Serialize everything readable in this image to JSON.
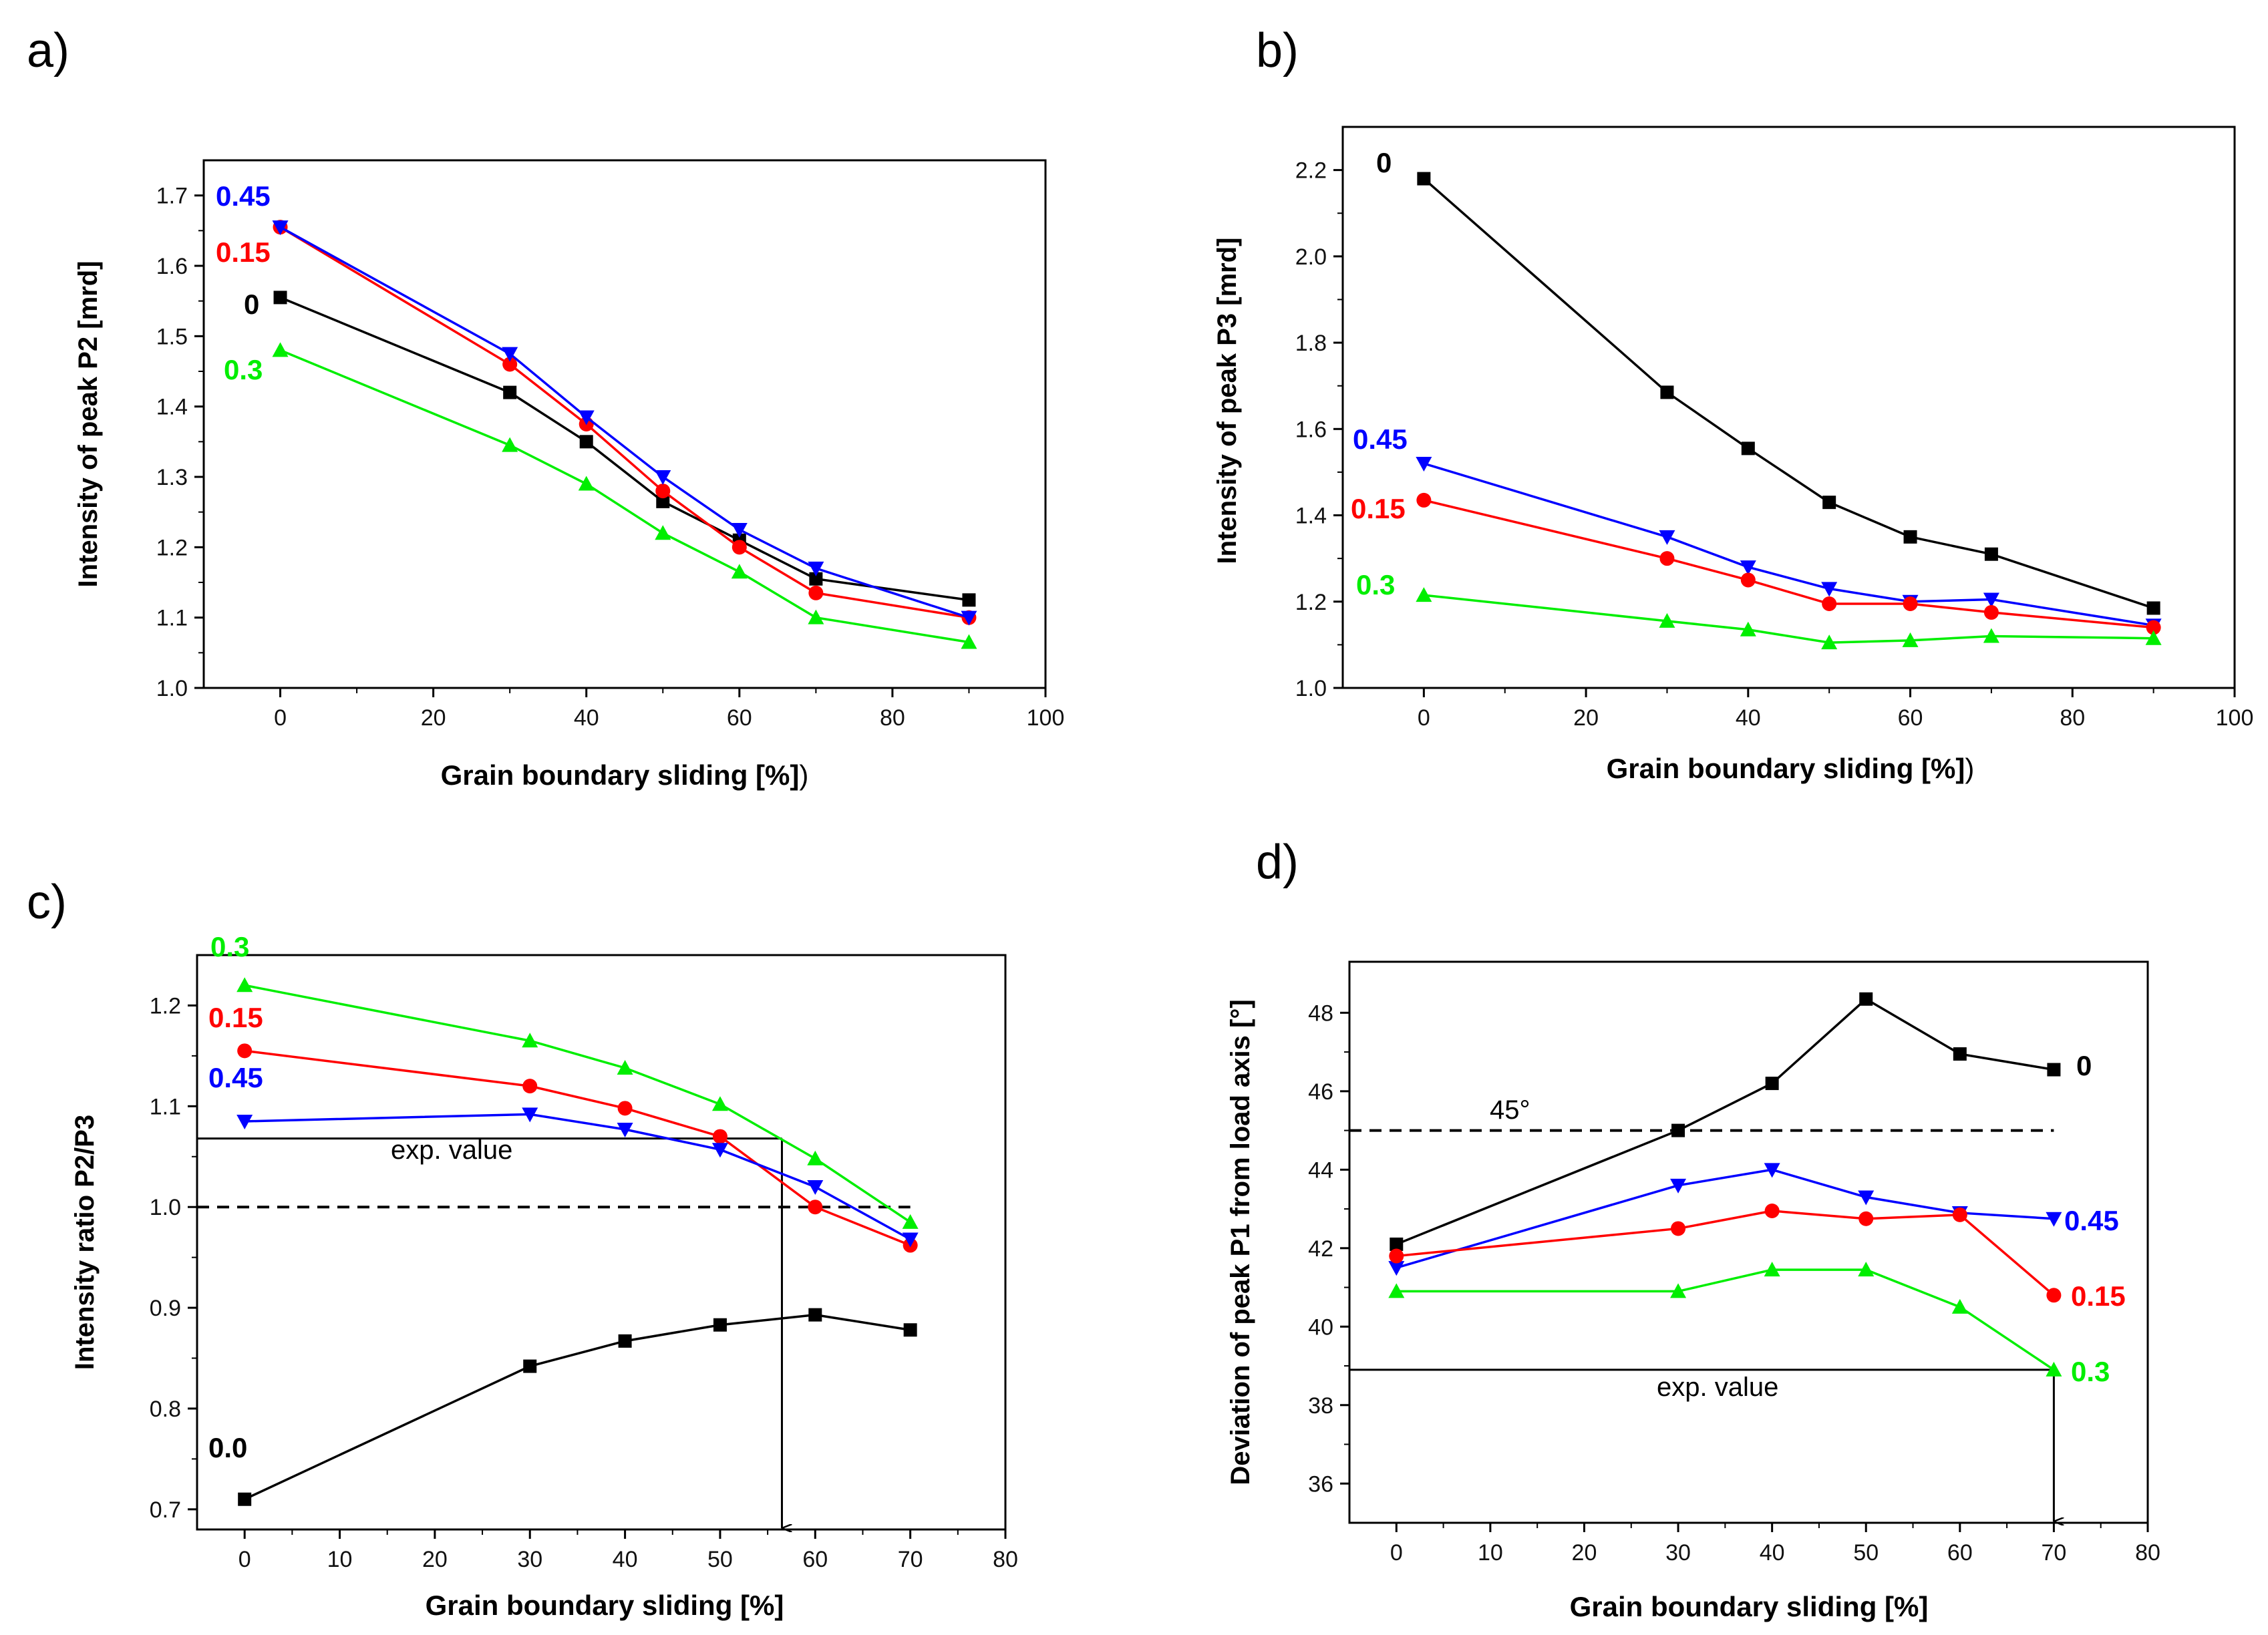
{
  "colors": {
    "black": "#000000",
    "red": "#ff0000",
    "blue": "#0000ff",
    "green": "#00ee00"
  },
  "chart_data": [
    {
      "panel": "a)",
      "type": "line",
      "xlabel": "Grain boundary sliding [%]",
      "xlabel_suffix": ")",
      "ylabel": "Intensity of peak P2 [mrd]",
      "xlim": [
        -10,
        100
      ],
      "ylim": [
        1.0,
        1.75
      ],
      "xticks": [
        0,
        20,
        40,
        60,
        80,
        100
      ],
      "xtick_labels": [
        "0",
        "20",
        "40",
        "60",
        "80",
        "100"
      ],
      "yticks": [
        1.0,
        1.1,
        1.2,
        1.3,
        1.4,
        1.5,
        1.6,
        1.7
      ],
      "ytick_labels": [
        "1.0",
        "1.1",
        "1.2",
        "1.3",
        "1.4",
        "1.5",
        "1.6",
        "1.7"
      ],
      "x": [
        0,
        30,
        40,
        50,
        60,
        70,
        90
      ],
      "series": [
        {
          "name": "0",
          "label": "0",
          "color": "black",
          "marker": "square",
          "values": [
            1.555,
            1.42,
            1.35,
            1.265,
            1.21,
            1.155,
            1.125
          ]
        },
        {
          "name": "0.15",
          "label": "0.15",
          "color": "red",
          "marker": "circle",
          "values": [
            1.655,
            1.46,
            1.375,
            1.28,
            1.2,
            1.135,
            1.1
          ]
        },
        {
          "name": "0.45",
          "label": "0.45",
          "color": "blue",
          "marker": "triangle-down",
          "values": [
            1.655,
            1.475,
            1.385,
            1.3,
            1.225,
            1.17,
            1.1
          ]
        },
        {
          "name": "0.3",
          "label": "0.3",
          "color": "green",
          "marker": "triangle-up",
          "values": [
            1.48,
            1.345,
            1.29,
            1.22,
            1.165,
            1.1,
            1.065
          ]
        }
      ]
    },
    {
      "panel": "b)",
      "type": "line",
      "xlabel": "Grain boundary sliding [%]",
      "xlabel_suffix": ")",
      "ylabel": "Intensity of peak P3 [mrd]",
      "xlim": [
        -10,
        100
      ],
      "ylim": [
        1.0,
        2.3
      ],
      "xticks": [
        0,
        20,
        40,
        60,
        80,
        100
      ],
      "xtick_labels": [
        "0",
        "20",
        "40",
        "60",
        "80",
        "100"
      ],
      "yticks": [
        1.0,
        1.2,
        1.4,
        1.6,
        1.8,
        2.0,
        2.2
      ],
      "ytick_labels": [
        "1.0",
        "1.2",
        "1.4",
        "1.6",
        "1.8",
        "2.0",
        "2.2"
      ],
      "x": [
        0,
        30,
        40,
        50,
        60,
        70,
        90
      ],
      "series": [
        {
          "name": "0",
          "label": "0",
          "color": "black",
          "marker": "square",
          "values": [
            2.18,
            1.685,
            1.555,
            1.43,
            1.35,
            1.31,
            1.185
          ]
        },
        {
          "name": "0.45",
          "label": "0.45",
          "color": "blue",
          "marker": "triangle-down",
          "values": [
            1.52,
            1.35,
            1.28,
            1.23,
            1.2,
            1.205,
            1.145
          ]
        },
        {
          "name": "0.15",
          "label": "0.15",
          "color": "red",
          "marker": "circle",
          "values": [
            1.435,
            1.3,
            1.25,
            1.195,
            1.195,
            1.175,
            1.14
          ]
        },
        {
          "name": "0.3",
          "label": "0.3",
          "color": "green",
          "marker": "triangle-up",
          "values": [
            1.215,
            1.155,
            1.135,
            1.105,
            1.11,
            1.12,
            1.115
          ]
        }
      ]
    },
    {
      "panel": "c)",
      "type": "line",
      "xlabel": "Grain boundary sliding [%]",
      "ylabel": "Intensity ratio P2/P3",
      "xlim": [
        -5,
        80
      ],
      "ylim": [
        0.68,
        1.25
      ],
      "xticks": [
        0,
        10,
        20,
        30,
        40,
        50,
        60,
        70,
        80
      ],
      "xtick_labels": [
        "0",
        "10",
        "20",
        "30",
        "40",
        "50",
        "60",
        "70",
        "80"
      ],
      "yticks": [
        0.7,
        0.8,
        0.9,
        1.0,
        1.1,
        1.2
      ],
      "ytick_labels": [
        "0.7",
        "0.8",
        "0.9",
        "1.0",
        "1.1",
        "1.2"
      ],
      "x": [
        0,
        30,
        40,
        50,
        60,
        70
      ],
      "series": [
        {
          "name": "0.3",
          "label": "0.3",
          "color": "green",
          "marker": "triangle-up",
          "values": [
            1.22,
            1.165,
            1.138,
            1.102,
            1.048,
            0.985
          ]
        },
        {
          "name": "0.15",
          "label": "0.15",
          "color": "red",
          "marker": "circle",
          "values": [
            1.155,
            1.12,
            1.098,
            1.07,
            1.0,
            0.962
          ]
        },
        {
          "name": "0.45",
          "label": "0.45",
          "color": "blue",
          "marker": "triangle-down",
          "values": [
            1.085,
            1.092,
            1.077,
            1.057,
            1.02,
            0.968
          ]
        },
        {
          "name": "0.0",
          "label": "0.0",
          "color": "black",
          "marker": "square",
          "values": [
            0.71,
            0.842,
            0.867,
            0.883,
            0.893,
            0.878
          ]
        }
      ],
      "reference_line": {
        "y": 1.0,
        "style": "dashed",
        "x_range": [
          -5,
          70
        ]
      },
      "exp_value": {
        "label": "exp. value",
        "y": 1.068,
        "x": 56.5
      }
    },
    {
      "panel": "d)",
      "type": "line",
      "xlabel": "Grain boundary sliding [%]",
      "ylabel": "Deviation of peak P1 from load axis [°]",
      "xlim": [
        -5,
        80
      ],
      "ylim": [
        35,
        49.3
      ],
      "xticks": [
        0,
        10,
        20,
        30,
        40,
        50,
        60,
        70,
        80
      ],
      "xtick_labels": [
        "0",
        "10",
        "20",
        "30",
        "40",
        "50",
        "60",
        "70",
        "80"
      ],
      "yticks": [
        36,
        38,
        40,
        42,
        44,
        46,
        48
      ],
      "ytick_labels": [
        "36",
        "38",
        "40",
        "42",
        "44",
        "46",
        "48"
      ],
      "x": [
        0,
        30,
        40,
        50,
        60,
        70
      ],
      "series": [
        {
          "name": "0",
          "label": "0",
          "color": "black",
          "marker": "square",
          "values": [
            42.1,
            45.0,
            46.2,
            48.35,
            46.95,
            46.55
          ]
        },
        {
          "name": "0.45",
          "label": "0.45",
          "color": "blue",
          "marker": "triangle-down",
          "values": [
            41.5,
            43.6,
            44.0,
            43.3,
            42.9,
            42.75
          ]
        },
        {
          "name": "0.15",
          "label": "0.15",
          "color": "red",
          "marker": "circle",
          "values": [
            41.8,
            42.5,
            42.95,
            42.75,
            42.85,
            40.8
          ]
        },
        {
          "name": "0.3",
          "label": "0.3",
          "color": "green",
          "marker": "triangle-up",
          "values": [
            40.9,
            40.9,
            41.45,
            41.45,
            40.5,
            38.9
          ]
        }
      ],
      "reference_line": {
        "y": 45,
        "style": "dashed",
        "label": "45°",
        "x_range": [
          -5,
          70
        ]
      },
      "exp_value": {
        "label": "exp. value",
        "y": 38.9,
        "x": 70
      }
    }
  ]
}
